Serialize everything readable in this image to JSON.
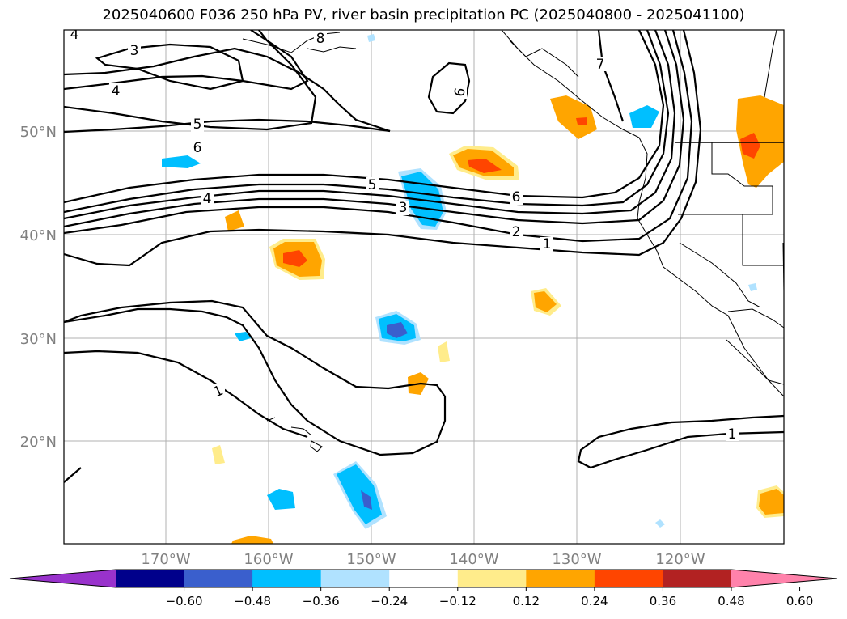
{
  "title": "2025040600 F036 250 hPa PV, river basin precipitation PC (2025040800 - 2025041100)",
  "axes": {
    "lat_labels": [
      "50°N",
      "40°N",
      "30°N",
      "20°N"
    ],
    "lon_labels": [
      "170°W",
      "160°W",
      "150°W",
      "140°W",
      "130°W",
      "120°W"
    ]
  },
  "contour_labels": [
    "3",
    "4",
    "5",
    "6",
    "6",
    "7",
    "8",
    "4",
    "5",
    "3",
    "6",
    "2",
    "1",
    "1",
    "1",
    "4"
  ],
  "colorbar": {
    "colors": [
      "#9932cc",
      "#00008b",
      "#3a5fcd",
      "#00bfff",
      "#b0e2ff",
      "#ffffff",
      "#ffec8b",
      "#ffa500",
      "#ff4500",
      "#b22222",
      "#ff82ab"
    ],
    "tick_labels": [
      "−0.60",
      "−0.48",
      "−0.36",
      "−0.24",
      "−0.12",
      "0.12",
      "0.24",
      "0.36",
      "0.48",
      "0.60"
    ]
  }
}
